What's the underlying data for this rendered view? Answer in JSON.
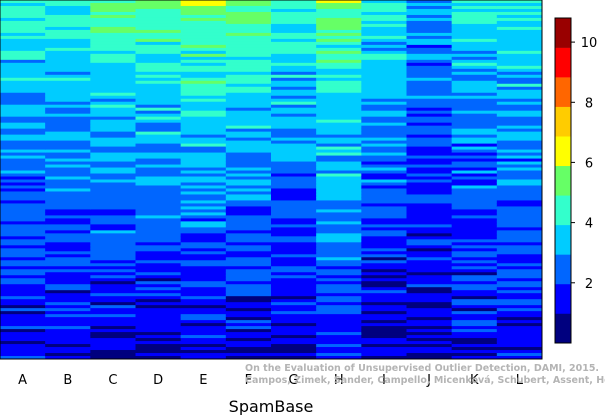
{
  "chart_data": {
    "type": "heatmap",
    "title": "",
    "xlabel": "SpamBase",
    "ylabel": "",
    "columns": [
      "A",
      "B",
      "C",
      "D",
      "E",
      "F",
      "G",
      "H",
      "I",
      "J",
      "K",
      "L"
    ],
    "colorbar": {
      "min": 0,
      "max": 10.8,
      "ticks": [
        2,
        4,
        6,
        8,
        10
      ],
      "colors": [
        "#00007f",
        "#0000ff",
        "#0066ff",
        "#00ccff",
        "#33ffcc",
        "#66ff66",
        "#ffff00",
        "#ffcc00",
        "#ff6600",
        "#ff0000",
        "#990000"
      ]
    },
    "column_value_ranges": [
      {
        "column": "A",
        "top": 4.2,
        "bottom": 1.2
      },
      {
        "column": "B",
        "top": 4.3,
        "bottom": 1.2
      },
      {
        "column": "C",
        "top": 5.0,
        "bottom": 1.0
      },
      {
        "column": "D",
        "top": 5.3,
        "bottom": 0.8
      },
      {
        "column": "E",
        "top": 5.6,
        "bottom": 1.0
      },
      {
        "column": "F",
        "top": 5.0,
        "bottom": 1.2
      },
      {
        "column": "G",
        "top": 4.6,
        "bottom": 1.1
      },
      {
        "column": "H",
        "top": 5.2,
        "bottom": 1.6
      },
      {
        "column": "I",
        "top": 4.2,
        "bottom": 0.9
      },
      {
        "column": "J",
        "top": 3.0,
        "bottom": 1.0
      },
      {
        "column": "K",
        "top": 4.0,
        "bottom": 1.1
      },
      {
        "column": "L",
        "top": 4.2,
        "bottom": 1.3
      }
    ],
    "grid": false,
    "legend": "colorbar-right"
  },
  "watermark": {
    "line1": "On the Evaluation of Unsupervised Outlier Detection, DAMI, 2015.",
    "line2": "Campos, Zimek, Sander, Campello, Micenková, Schubert, Assent, Houle"
  }
}
